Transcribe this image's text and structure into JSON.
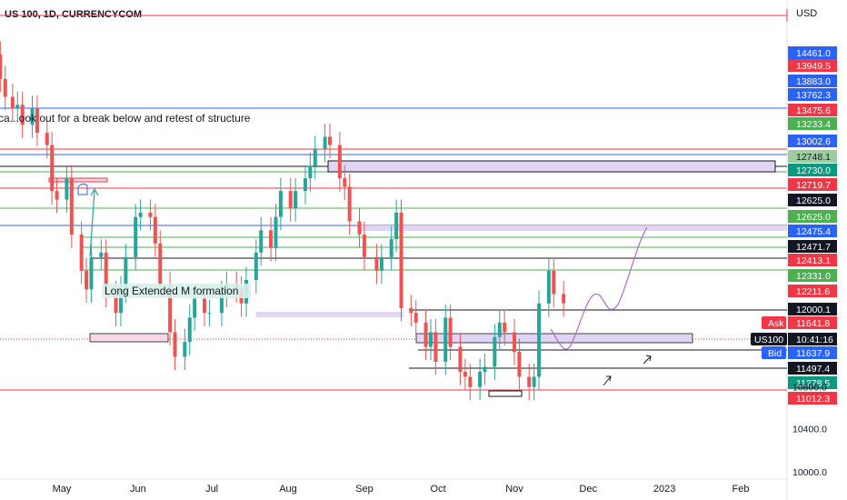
{
  "header": {
    "symbol": "US 100, 1D, CURRENCYCOM",
    "currency": "USD"
  },
  "annotations": {
    "note": "ca...ook out for a break below and retest of structure",
    "m_formation": "Long Extended M formation"
  },
  "colors": {
    "bull": "#26a69a",
    "bear": "#ef5350",
    "blue": "#2962ff",
    "red_line": "#f23645",
    "green_line": "#4caf50",
    "dark": "#131722",
    "zone": "#e1d5f5",
    "pink_zone": "#f8d7e8",
    "projection": "#b06ad0"
  },
  "chart_data": {
    "type": "candlestick",
    "title": "US 100, 1D, CURRENCYCOM",
    "y_scale": "log",
    "ylim": [
      10000,
      14700
    ],
    "y_ticks": [
      "10000.0",
      "10400.0",
      "10800.0"
    ],
    "x_ticks": [
      {
        "label": "May",
        "date": "2022-05-01"
      },
      {
        "label": "Jun",
        "date": "2022-06-01"
      },
      {
        "label": "Jul",
        "date": "2022-07-01"
      },
      {
        "label": "Aug",
        "date": "2022-08-01"
      },
      {
        "label": "Sep",
        "date": "2022-09-01"
      },
      {
        "label": "Oct",
        "date": "2022-10-01"
      },
      {
        "label": "Nov",
        "date": "2022-11-01"
      },
      {
        "label": "Dec",
        "date": "2022-12-01"
      },
      {
        "label": "2023",
        "date": "2023-01-01"
      },
      {
        "label": "Feb",
        "date": "2023-02-01"
      }
    ],
    "candle_closes": [
      [
        "2022-04-04",
        14600
      ],
      [
        "2022-04-06",
        14280
      ],
      [
        "2022-04-08",
        14050
      ],
      [
        "2022-04-11",
        13900
      ],
      [
        "2022-04-13",
        13950
      ],
      [
        "2022-04-15",
        13700
      ],
      [
        "2022-04-19",
        13900
      ],
      [
        "2022-04-21",
        13600
      ],
      [
        "2022-04-25",
        13450
      ],
      [
        "2022-04-27",
        12900
      ],
      [
        "2022-04-29",
        12800
      ],
      [
        "2022-05-03",
        13050
      ],
      [
        "2022-05-05",
        12400
      ],
      [
        "2022-05-09",
        12000
      ],
      [
        "2022-05-11",
        11800
      ],
      [
        "2022-05-13",
        12150
      ],
      [
        "2022-05-17",
        12200
      ],
      [
        "2022-05-19",
        11750
      ],
      [
        "2022-05-23",
        11550
      ],
      [
        "2022-05-25",
        11800
      ],
      [
        "2022-05-27",
        12150
      ],
      [
        "2022-05-31",
        12600
      ],
      [
        "2022-06-02",
        12650
      ],
      [
        "2022-06-06",
        12600
      ],
      [
        "2022-06-08",
        12300
      ],
      [
        "2022-06-10",
        11850
      ],
      [
        "2022-06-14",
        11350
      ],
      [
        "2022-06-16",
        11100
      ],
      [
        "2022-06-20",
        11250
      ],
      [
        "2022-06-22",
        11500
      ],
      [
        "2022-06-24",
        11700
      ],
      [
        "2022-06-28",
        11550
      ],
      [
        "2022-06-30",
        11550
      ],
      [
        "2022-07-05",
        11750
      ],
      [
        "2022-07-07",
        11850
      ],
      [
        "2022-07-11",
        11800
      ],
      [
        "2022-07-13",
        11650
      ],
      [
        "2022-07-15",
        11900
      ],
      [
        "2022-07-19",
        12200
      ],
      [
        "2022-07-21",
        12450
      ],
      [
        "2022-07-25",
        12250
      ],
      [
        "2022-07-27",
        12600
      ],
      [
        "2022-07-29",
        12900
      ],
      [
        "2022-08-02",
        12700
      ],
      [
        "2022-08-04",
        12900
      ],
      [
        "2022-08-08",
        13050
      ],
      [
        "2022-08-10",
        13200
      ],
      [
        "2022-08-12",
        13400
      ],
      [
        "2022-08-16",
        13550
      ],
      [
        "2022-08-18",
        13450
      ],
      [
        "2022-08-22",
        13050
      ],
      [
        "2022-08-24",
        12950
      ],
      [
        "2022-08-26",
        12550
      ],
      [
        "2022-08-30",
        12400
      ],
      [
        "2022-09-01",
        12150
      ],
      [
        "2022-09-06",
        12000
      ],
      [
        "2022-09-08",
        12150
      ],
      [
        "2022-09-12",
        12350
      ],
      [
        "2022-09-14",
        12650
      ],
      [
        "2022-09-16",
        11600
      ],
      [
        "2022-09-20",
        11550
      ],
      [
        "2022-09-22",
        11450
      ],
      [
        "2022-09-26",
        11200
      ],
      [
        "2022-09-28",
        11350
      ],
      [
        "2022-09-30",
        11050
      ],
      [
        "2022-10-04",
        11500
      ],
      [
        "2022-10-06",
        11200
      ],
      [
        "2022-10-10",
        10950
      ],
      [
        "2022-10-12",
        10900
      ],
      [
        "2022-10-14",
        10800
      ],
      [
        "2022-10-18",
        10950
      ],
      [
        "2022-10-20",
        11000
      ],
      [
        "2022-10-24",
        11300
      ],
      [
        "2022-10-26",
        11450
      ],
      [
        "2022-10-28",
        11350
      ],
      [
        "2022-11-01",
        11150
      ],
      [
        "2022-11-03",
        10900
      ],
      [
        "2022-11-07",
        10800
      ],
      [
        "2022-11-09",
        10900
      ],
      [
        "2022-11-11",
        11650
      ],
      [
        "2022-11-15",
        12000
      ],
      [
        "2022-11-17",
        11750
      ],
      [
        "2022-11-21",
        11650
      ]
    ],
    "price_labels": [
      {
        "value": "14461.0",
        "color": "#2962ff"
      },
      {
        "value": "13949.5",
        "color": "#f23645"
      },
      {
        "value": "13883.0",
        "color": "#2962ff"
      },
      {
        "value": "13762.3",
        "color": "#2962ff"
      },
      {
        "value": "13475.6",
        "color": "#f23645"
      },
      {
        "value": "13233.4",
        "color": "#4caf50"
      },
      {
        "value": "13002.6",
        "color": "#2962ff"
      },
      {
        "value": "12748.1",
        "color": "#9ccc9f",
        "text_color": "#131722"
      },
      {
        "value": "12730.0",
        "color": "#089981"
      },
      {
        "value": "12719.7",
        "color": "#f23645"
      },
      {
        "value": "12625.0",
        "color": "#131722"
      },
      {
        "value": "12625.0",
        "color": "#4caf50"
      },
      {
        "value": "12475.4",
        "color": "#2962ff"
      },
      {
        "value": "12471.7",
        "color": "#131722"
      },
      {
        "value": "12413.1",
        "color": "#f23645"
      },
      {
        "value": "12331.0",
        "color": "#4caf50"
      },
      {
        "value": "12211.6",
        "color": "#f23645"
      },
      {
        "value": "12000.1",
        "color": "#131722"
      },
      {
        "value": "11641.8",
        "color": "#f23645"
      },
      {
        "value": "10:41:16",
        "color": "#131722",
        "tag": "US100",
        "tag_color": "#131722"
      },
      {
        "value": "11637.9",
        "color": "#2962ff",
        "tag": "Bid",
        "tag_color": "#2962ff"
      },
      {
        "value": "11497.4",
        "color": "#131722"
      },
      {
        "value": "11278.5",
        "color": "#089981"
      },
      {
        "value": "11012.3",
        "color": "#f23645"
      }
    ],
    "ask_tag": "Ask"
  }
}
